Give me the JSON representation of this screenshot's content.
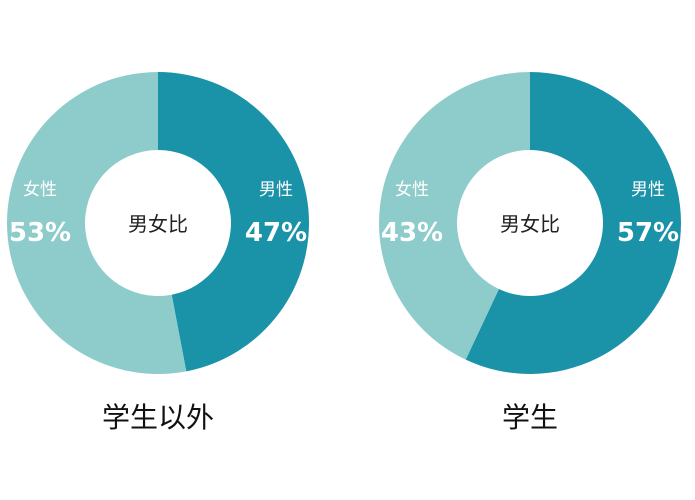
{
  "chart_data": [
    {
      "type": "pie",
      "variant": "donut",
      "center_label": "男女比",
      "caption": "学生以外",
      "slices": [
        {
          "name": "男性",
          "value": 47,
          "display": "47%",
          "color": "#1a92a8"
        },
        {
          "name": "女性",
          "value": 53,
          "display": "53%",
          "color": "#8ecccc"
        }
      ]
    },
    {
      "type": "pie",
      "variant": "donut",
      "center_label": "男女比",
      "caption": "学生",
      "slices": [
        {
          "name": "男性",
          "value": 57,
          "display": "57%",
          "color": "#1a92a8"
        },
        {
          "name": "女性",
          "value": 43,
          "display": "43%",
          "color": "#8ecccc"
        }
      ]
    }
  ]
}
